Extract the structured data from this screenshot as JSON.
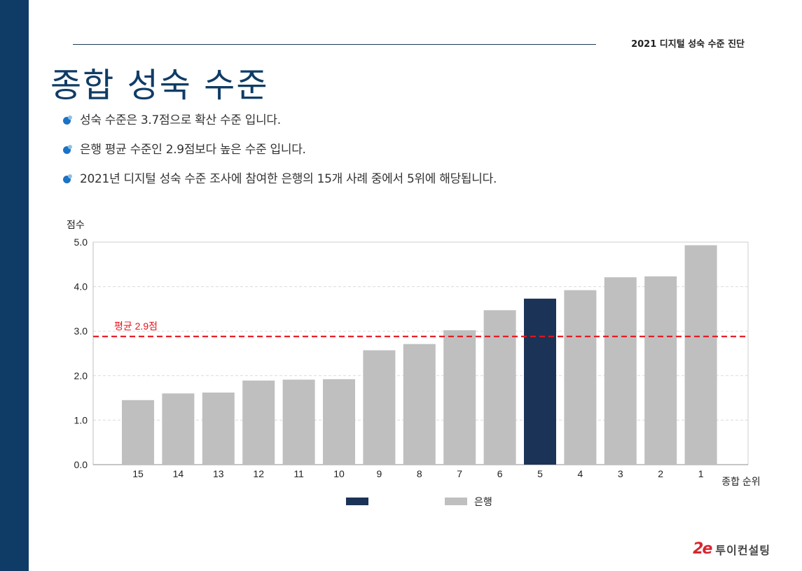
{
  "header": {
    "doc_title": "2021 디지털 성숙 수준 진단"
  },
  "page": {
    "title": "종합 성숙 수준"
  },
  "bullets": [
    "성숙 수준은 3.7점으로 확산 수준 입니다.",
    "은행 평균 수준인 2.9점보다 높은 수준 입니다.",
    "2021년 디지털 성숙 수준 조사에 참여한 은행의 15개 사례 중에서 5위에 해당됩니다."
  ],
  "chart_data": {
    "type": "bar",
    "ylabel": "점수",
    "xlabel": "종합 순위",
    "ylim": [
      0,
      5
    ],
    "yticks": [
      "0.0",
      "1.0",
      "2.0",
      "3.0",
      "4.0",
      "5.0"
    ],
    "categories": [
      "15",
      "14",
      "13",
      "12",
      "11",
      "10",
      "9",
      "8",
      "7",
      "6",
      "5",
      "4",
      "3",
      "2",
      "1"
    ],
    "values": [
      1.45,
      1.6,
      1.62,
      1.89,
      1.91,
      1.92,
      2.57,
      2.71,
      3.02,
      3.47,
      3.73,
      3.92,
      4.21,
      4.23,
      4.93
    ],
    "highlight_category": "5",
    "average": {
      "value": 2.88,
      "label": "평균 2.9점",
      "color": "#e8141e"
    },
    "colors": {
      "bar": "#bfbfbf",
      "highlight": "#1b3356"
    },
    "grid": true,
    "legend": {
      "position": "bottom",
      "entries": [
        {
          "name": "",
          "color": "#1b3356"
        },
        {
          "name": "은행",
          "color": "#bfbfbf"
        }
      ]
    }
  },
  "logo": {
    "mark": "2e",
    "text": "투이컨설팅"
  }
}
